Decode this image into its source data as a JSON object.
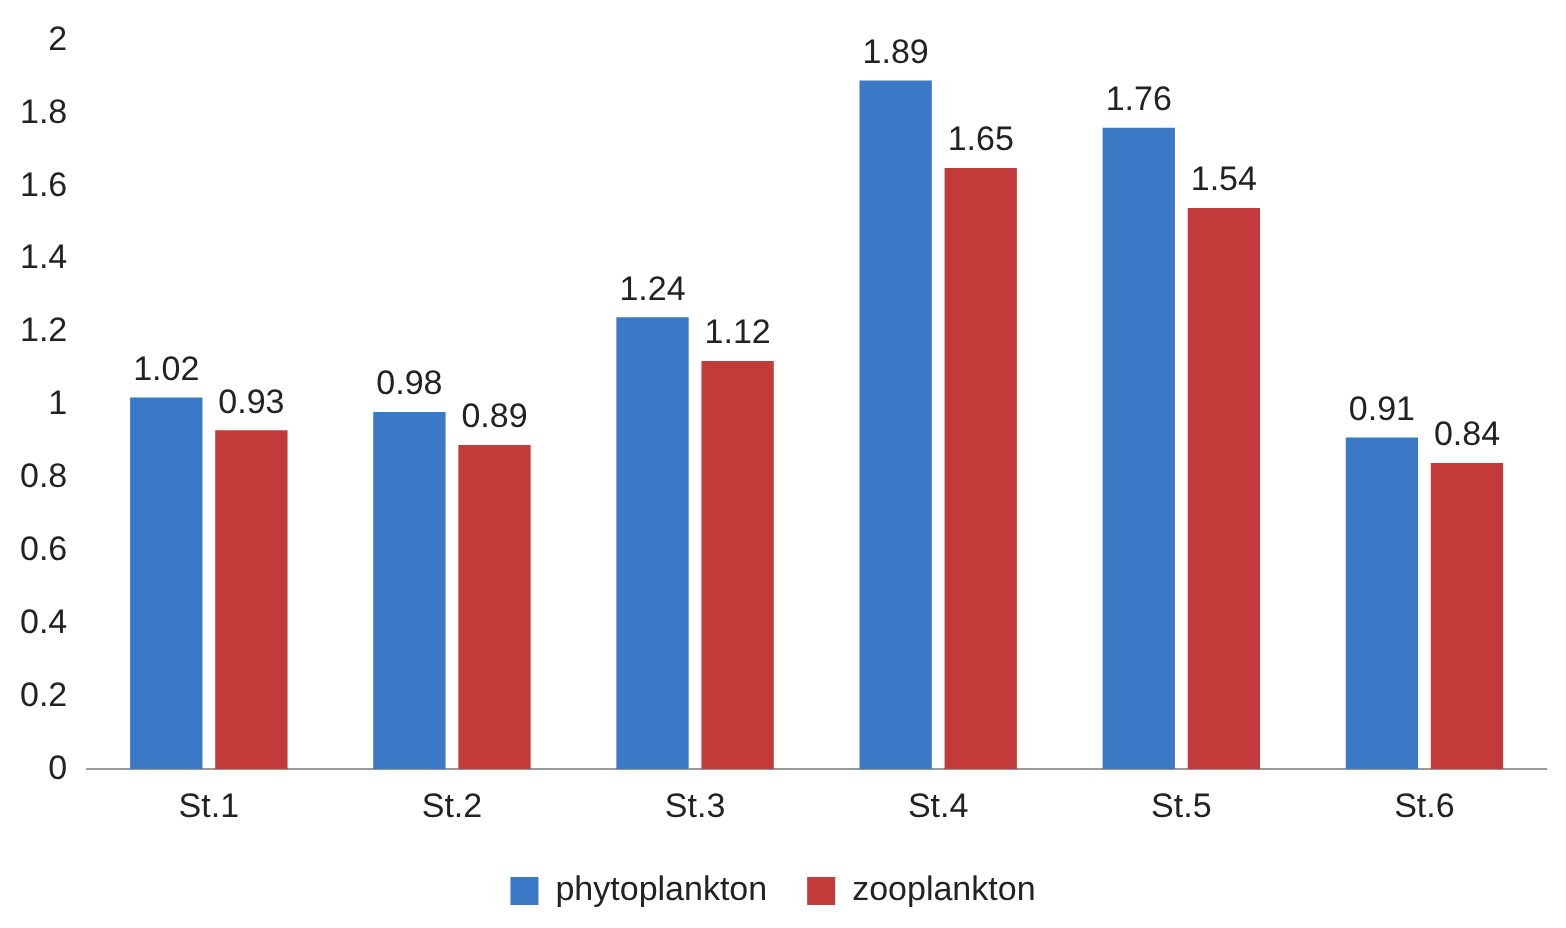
{
  "chart_data": {
    "type": "bar",
    "categories": [
      "St.1",
      "St.2",
      "St.3",
      "St.4",
      "St.5",
      "St.6"
    ],
    "series": [
      {
        "name": "phytoplankton",
        "color": "#3b78c6",
        "values": [
          1.02,
          0.98,
          1.24,
          1.89,
          1.76,
          0.91
        ]
      },
      {
        "name": "zooplankton",
        "color": "#c23b3a",
        "values": [
          0.93,
          0.89,
          1.12,
          1.65,
          1.54,
          0.84
        ]
      }
    ],
    "ylim": [
      0,
      2
    ],
    "yticks": [
      0,
      0.2,
      0.4,
      0.6,
      0.8,
      1,
      1.2,
      1.4,
      1.6,
      1.8,
      2
    ],
    "grid": false,
    "legend": "bottom",
    "data_labels": true
  }
}
